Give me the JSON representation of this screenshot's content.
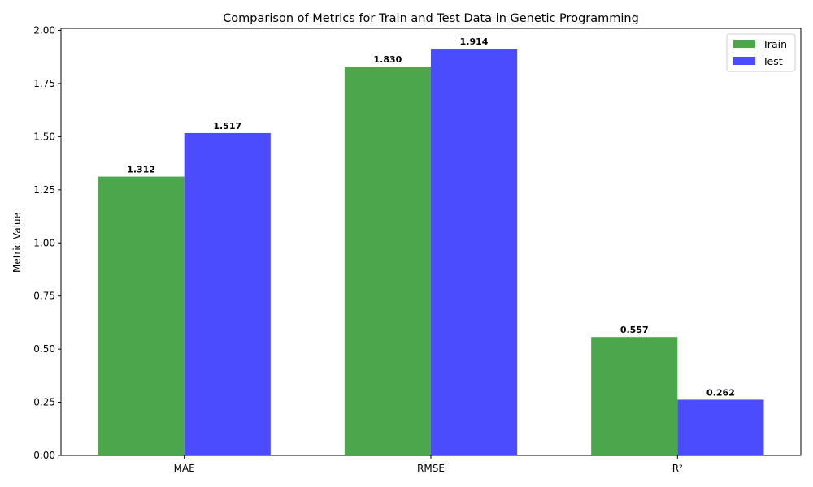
{
  "chart_data": {
    "type": "bar",
    "title": "Comparison of Metrics for Train and Test Data in Genetic Programming",
    "xlabel": "",
    "ylabel": "Metric Value",
    "categories": [
      "MAE",
      "RMSE",
      "R²"
    ],
    "series": [
      {
        "name": "Train",
        "values": [
          1.312,
          1.83,
          0.557
        ],
        "labels": [
          "1.312",
          "1.830",
          "0.557"
        ],
        "color": "#4ca64c"
      },
      {
        "name": "Test",
        "values": [
          1.517,
          1.914,
          0.262
        ],
        "labels": [
          "1.517",
          "1.914",
          "0.262"
        ],
        "color": "#4c4cff"
      }
    ],
    "ylim": [
      0,
      2.0096
    ],
    "yticks": [
      0.0,
      0.25,
      0.5,
      0.75,
      1.0,
      1.25,
      1.5,
      1.75,
      2.0
    ],
    "ytick_labels": [
      "0.00",
      "0.25",
      "0.50",
      "0.75",
      "1.00",
      "1.25",
      "1.50",
      "1.75",
      "2.00"
    ],
    "grid": false,
    "legend_position": "top-right"
  }
}
